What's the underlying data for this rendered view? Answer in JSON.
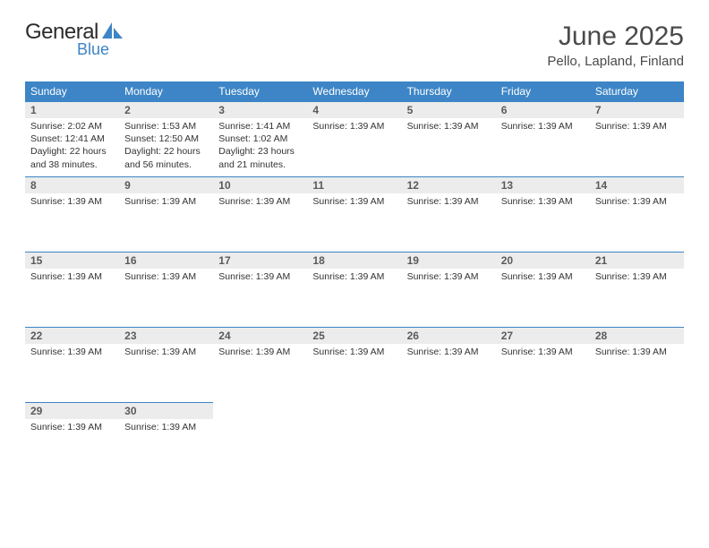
{
  "brand": {
    "word1": "General",
    "word2": "Blue",
    "word1_color": "#2b2b2b",
    "word2_color": "#3d85c6",
    "shape_color": "#3d85c6"
  },
  "title": "June 2025",
  "location": "Pello, Lapland, Finland",
  "colors": {
    "header_bg": "#3d85c6",
    "header_text": "#ffffff",
    "daynum_bg": "#ececec",
    "daynum_text": "#5a5a5a",
    "detail_text": "#333333",
    "row_border": "#3d85c6",
    "page_bg": "#ffffff"
  },
  "typography": {
    "title_fontsize": 30,
    "location_fontsize": 15,
    "dow_fontsize": 12,
    "daynum_fontsize": 12,
    "detail_fontsize": 10.5
  },
  "days_of_week": [
    "Sunday",
    "Monday",
    "Tuesday",
    "Wednesday",
    "Thursday",
    "Friday",
    "Saturday"
  ],
  "weeks": [
    [
      {
        "num": "1",
        "lines": [
          "Sunrise: 2:02 AM",
          "Sunset: 12:41 AM",
          "Daylight: 22 hours and 38 minutes."
        ]
      },
      {
        "num": "2",
        "lines": [
          "Sunrise: 1:53 AM",
          "Sunset: 12:50 AM",
          "Daylight: 22 hours and 56 minutes."
        ]
      },
      {
        "num": "3",
        "lines": [
          "Sunrise: 1:41 AM",
          "Sunset: 1:02 AM",
          "Daylight: 23 hours and 21 minutes."
        ]
      },
      {
        "num": "4",
        "lines": [
          "Sunrise: 1:39 AM"
        ]
      },
      {
        "num": "5",
        "lines": [
          "Sunrise: 1:39 AM"
        ]
      },
      {
        "num": "6",
        "lines": [
          "Sunrise: 1:39 AM"
        ]
      },
      {
        "num": "7",
        "lines": [
          "Sunrise: 1:39 AM"
        ]
      }
    ],
    [
      {
        "num": "8",
        "lines": [
          "Sunrise: 1:39 AM"
        ]
      },
      {
        "num": "9",
        "lines": [
          "Sunrise: 1:39 AM"
        ]
      },
      {
        "num": "10",
        "lines": [
          "Sunrise: 1:39 AM"
        ]
      },
      {
        "num": "11",
        "lines": [
          "Sunrise: 1:39 AM"
        ]
      },
      {
        "num": "12",
        "lines": [
          "Sunrise: 1:39 AM"
        ]
      },
      {
        "num": "13",
        "lines": [
          "Sunrise: 1:39 AM"
        ]
      },
      {
        "num": "14",
        "lines": [
          "Sunrise: 1:39 AM"
        ]
      }
    ],
    [
      {
        "num": "15",
        "lines": [
          "Sunrise: 1:39 AM"
        ]
      },
      {
        "num": "16",
        "lines": [
          "Sunrise: 1:39 AM"
        ]
      },
      {
        "num": "17",
        "lines": [
          "Sunrise: 1:39 AM"
        ]
      },
      {
        "num": "18",
        "lines": [
          "Sunrise: 1:39 AM"
        ]
      },
      {
        "num": "19",
        "lines": [
          "Sunrise: 1:39 AM"
        ]
      },
      {
        "num": "20",
        "lines": [
          "Sunrise: 1:39 AM"
        ]
      },
      {
        "num": "21",
        "lines": [
          "Sunrise: 1:39 AM"
        ]
      }
    ],
    [
      {
        "num": "22",
        "lines": [
          "Sunrise: 1:39 AM"
        ]
      },
      {
        "num": "23",
        "lines": [
          "Sunrise: 1:39 AM"
        ]
      },
      {
        "num": "24",
        "lines": [
          "Sunrise: 1:39 AM"
        ]
      },
      {
        "num": "25",
        "lines": [
          "Sunrise: 1:39 AM"
        ]
      },
      {
        "num": "26",
        "lines": [
          "Sunrise: 1:39 AM"
        ]
      },
      {
        "num": "27",
        "lines": [
          "Sunrise: 1:39 AM"
        ]
      },
      {
        "num": "28",
        "lines": [
          "Sunrise: 1:39 AM"
        ]
      }
    ],
    [
      {
        "num": "29",
        "lines": [
          "Sunrise: 1:39 AM"
        ]
      },
      {
        "num": "30",
        "lines": [
          "Sunrise: 1:39 AM"
        ]
      },
      {
        "num": "",
        "lines": []
      },
      {
        "num": "",
        "lines": []
      },
      {
        "num": "",
        "lines": []
      },
      {
        "num": "",
        "lines": []
      },
      {
        "num": "",
        "lines": []
      }
    ]
  ]
}
